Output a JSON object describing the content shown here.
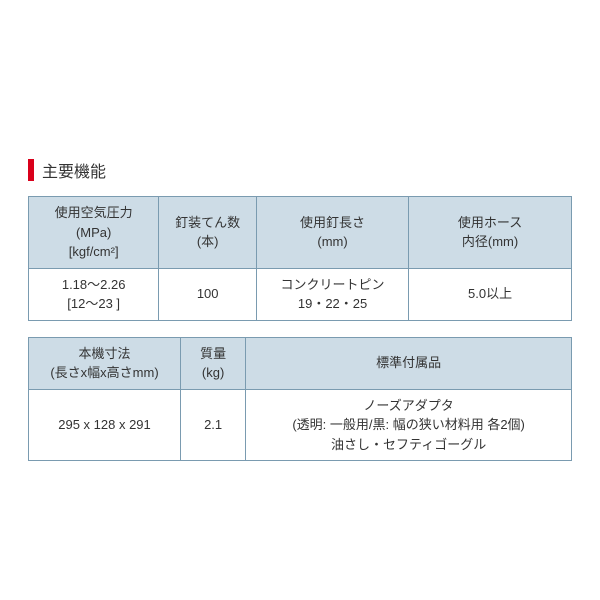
{
  "section": {
    "title": "主要機能",
    "title_bar_color": "#d9001b"
  },
  "table1": {
    "headers": [
      "使用空気圧力\n(MPa)\n[kgf/cm²]",
      "釘装てん数\n(本)",
      "使用釘長さ\n(mm)",
      "使用ホース\n内径(mm)"
    ],
    "row": [
      "1.18～2.26\n[12～23 ]",
      "100",
      "コンクリートピン\n19・22・25",
      "5.0以上"
    ]
  },
  "table2": {
    "headers": [
      "本機寸法\n(長さx幅x高さmm)",
      "質量\n(kg)",
      "標準付属品"
    ],
    "row": [
      "295 x 128 x 291",
      "2.1",
      "ノーズアダプタ\n(透明: 一般用/黒: 幅の狭い材料用 各2個)\n油さし・セフティゴーグル"
    ]
  },
  "style": {
    "header_bg": "#cddce6",
    "border_color": "#7a9bb0",
    "cell_bg": "#ffffff",
    "text_color": "#333333",
    "font_size_header": 13,
    "font_size_cell": 13,
    "font_size_title": 16
  }
}
